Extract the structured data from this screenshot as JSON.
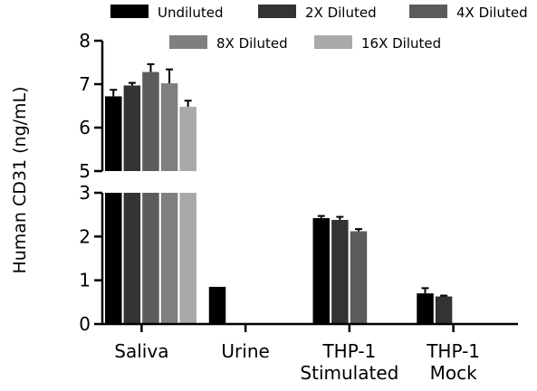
{
  "chart_data": {
    "type": "bar",
    "title": "",
    "xlabel": "",
    "ylabel": "Human CD31 (ng/mL)",
    "axis_break": {
      "lower_range": [
        0,
        3
      ],
      "upper_range": [
        5,
        8
      ]
    },
    "yticks_lower": [
      "0",
      "1",
      "2",
      "3"
    ],
    "yticks_upper": [
      "5",
      "6",
      "7",
      "8"
    ],
    "categories": [
      {
        "lines": [
          "Saliva"
        ]
      },
      {
        "lines": [
          "Urine"
        ]
      },
      {
        "lines": [
          "THP-1",
          "Stimulated"
        ]
      },
      {
        "lines": [
          "THP-1",
          "Mock"
        ]
      }
    ],
    "series": [
      {
        "name": "Undiluted",
        "color": "#000000",
        "values": [
          6.72,
          0.85,
          2.42,
          0.7
        ],
        "errors": [
          0.15,
          0.0,
          0.05,
          0.12
        ]
      },
      {
        "name": "2X Diluted",
        "color": "#333333",
        "values": [
          6.97,
          null,
          2.38,
          0.63
        ],
        "errors": [
          0.06,
          null,
          0.07,
          0.02
        ]
      },
      {
        "name": "4X Diluted",
        "color": "#5c5c5c",
        "values": [
          7.28,
          null,
          2.12,
          null
        ],
        "errors": [
          0.18,
          null,
          0.05,
          null
        ]
      },
      {
        "name": "8X Diluted",
        "color": "#7f7f7f",
        "values": [
          7.02,
          null,
          null,
          null
        ],
        "errors": [
          0.32,
          null,
          null,
          null
        ]
      },
      {
        "name": "16X Diluted",
        "color": "#a9a9a9",
        "values": [
          6.48,
          null,
          null,
          null
        ],
        "errors": [
          0.14,
          null,
          null,
          null
        ]
      }
    ],
    "legend_position": "top"
  }
}
